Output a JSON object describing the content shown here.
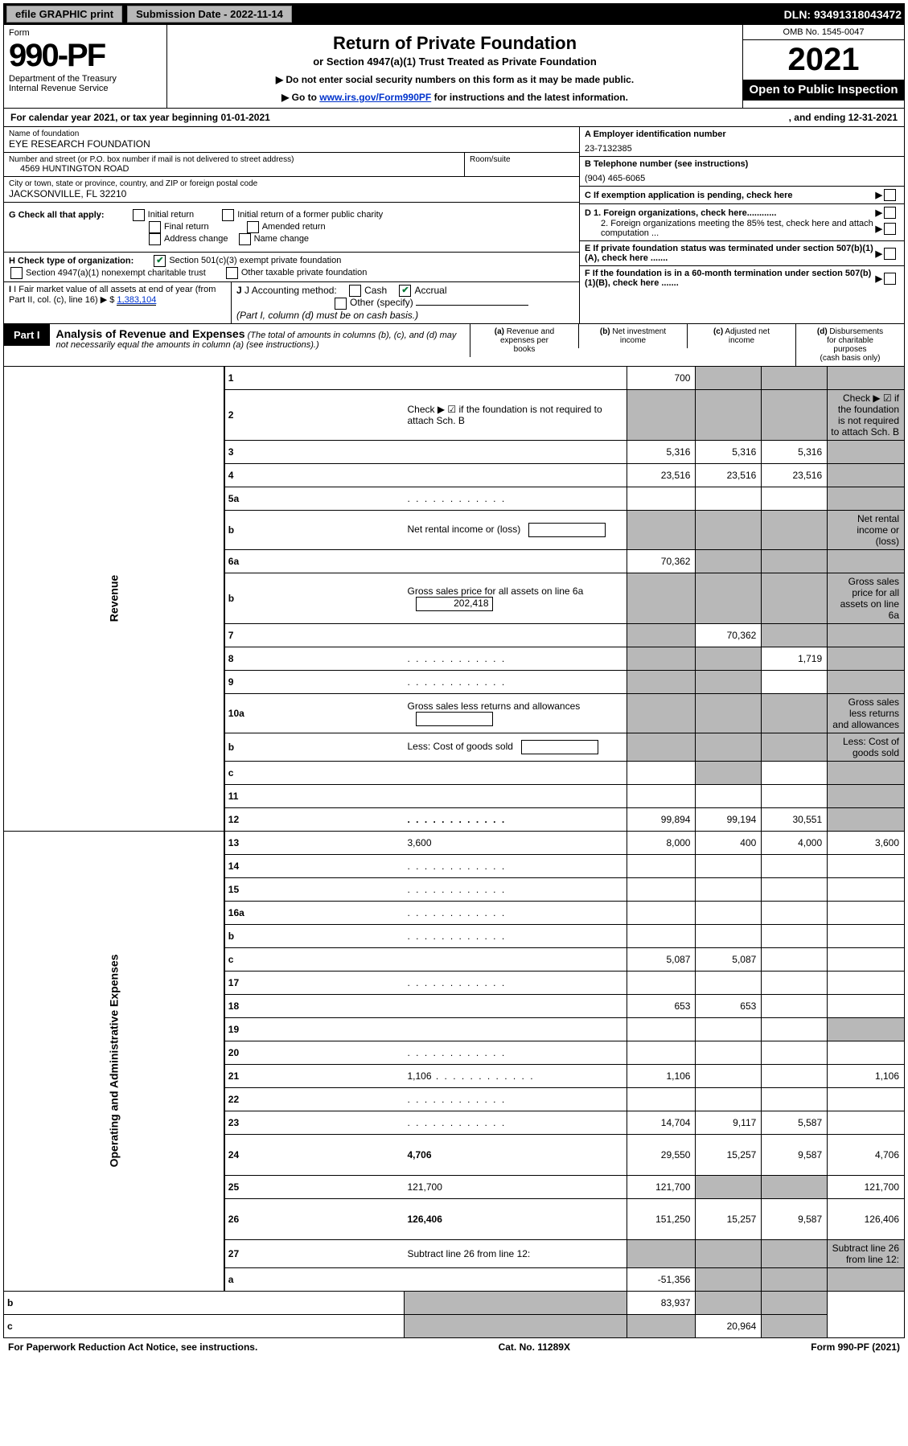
{
  "topbar": {
    "efile": "efile GRAPHIC print",
    "submission": "Submission Date - 2022-11-14",
    "dln": "DLN: 93491318043472"
  },
  "header": {
    "form_label": "Form",
    "form_number": "990-PF",
    "dept": "Department of the Treasury",
    "irs": "Internal Revenue Service",
    "title": "Return of Private Foundation",
    "subtitle": "or Section 4947(a)(1) Trust Treated as Private Foundation",
    "note1": "▶ Do not enter social security numbers on this form as it may be made public.",
    "note2_pre": "▶ Go to ",
    "note2_link": "www.irs.gov/Form990PF",
    "note2_post": " for instructions and the latest information.",
    "omb": "OMB No. 1545-0047",
    "year": "2021",
    "inspect": "Open to Public Inspection"
  },
  "calyear": {
    "left": "For calendar year 2021, or tax year beginning 01-01-2021",
    "right": ", and ending 12-31-2021"
  },
  "info": {
    "name_label": "Name of foundation",
    "name": "EYE RESEARCH FOUNDATION",
    "addr_label": "Number and street (or P.O. box number if mail is not delivered to street address)",
    "addr": "4569 HUNTINGTON ROAD",
    "room_label": "Room/suite",
    "city_label": "City or town, state or province, country, and ZIP or foreign postal code",
    "city": "JACKSONVILLE, FL  32210",
    "a_label": "A Employer identification number",
    "a_val": "23-7132385",
    "b_label": "B Telephone number (see instructions)",
    "b_val": "(904) 465-6065",
    "c_label": "C If exemption application is pending, check here",
    "d1": "D 1. Foreign organizations, check here............",
    "d2": "2. Foreign organizations meeting the 85% test, check here and attach computation ...",
    "e": "E  If private foundation status was terminated under section 507(b)(1)(A), check here .......",
    "f": "F  If the foundation is in a 60-month termination under section 507(b)(1)(B), check here .......",
    "g_label": "G Check all that apply:",
    "g_initial": "Initial return",
    "g_initial_fpc": "Initial return of a former public charity",
    "g_final": "Final return",
    "g_amended": "Amended return",
    "g_addr": "Address change",
    "g_name": "Name change",
    "h_label": "H Check type of organization:",
    "h_501c3": "Section 501(c)(3) exempt private foundation",
    "h_4947": "Section 4947(a)(1) nonexempt charitable trust",
    "h_other": "Other taxable private foundation",
    "i_label": "I Fair market value of all assets at end of year (from Part II, col. (c), line 16) ▶ $",
    "i_val": "1,383,104",
    "j_label": "J Accounting method:",
    "j_cash": "Cash",
    "j_accrual": "Accrual",
    "j_other": "Other (specify)",
    "j_note": "(Part I, column (d) must be on cash basis.)"
  },
  "part1": {
    "tag": "Part I",
    "title": "Analysis of Revenue and Expenses",
    "note": "(The total of amounts in columns (b), (c), and (d) may not necessarily equal the amounts in column (a) (see instructions).)",
    "col_a": "(a)  Revenue and expenses per books",
    "col_b": "(b)  Net investment income",
    "col_c": "(c)  Adjusted net income",
    "col_d": "(d)  Disbursements for charitable purposes (cash basis only)"
  },
  "side": {
    "revenue": "Revenue",
    "expenses": "Operating and Administrative Expenses"
  },
  "rows": [
    {
      "n": "1",
      "d": "",
      "a": "700",
      "b": "",
      "c": "",
      "grey": [
        "b",
        "c",
        "d"
      ]
    },
    {
      "n": "2",
      "d": "Check ▶ ☑ if the foundation is not required to attach Sch. B",
      "nobox": true,
      "grey": [
        "a",
        "b",
        "c",
        "d"
      ]
    },
    {
      "n": "3",
      "d": "",
      "a": "5,316",
      "b": "5,316",
      "c": "5,316",
      "grey": [
        "d"
      ]
    },
    {
      "n": "4",
      "d": "",
      "a": "23,516",
      "b": "23,516",
      "c": "23,516",
      "grey": [
        "d"
      ]
    },
    {
      "n": "5a",
      "d": "",
      "a": "",
      "b": "",
      "c": "",
      "grey": [
        "d"
      ],
      "dots": true
    },
    {
      "n": "b",
      "d": "Net rental income or (loss)",
      "inline": "",
      "grey": [
        "a",
        "b",
        "c",
        "d"
      ]
    },
    {
      "n": "6a",
      "d": "",
      "a": "70,362",
      "b": "",
      "c": "",
      "grey": [
        "b",
        "c",
        "d"
      ]
    },
    {
      "n": "b",
      "d": "Gross sales price for all assets on line 6a",
      "inline": "202,418",
      "grey": [
        "a",
        "b",
        "c",
        "d"
      ]
    },
    {
      "n": "7",
      "d": "",
      "a": "",
      "b": "70,362",
      "c": "",
      "grey": [
        "a",
        "c",
        "d"
      ]
    },
    {
      "n": "8",
      "d": "",
      "a": "",
      "b": "",
      "c": "1,719",
      "grey": [
        "a",
        "b",
        "d"
      ],
      "dots": true
    },
    {
      "n": "9",
      "d": "",
      "a": "",
      "b": "",
      "c": "",
      "grey": [
        "a",
        "b",
        "d"
      ],
      "dots": true
    },
    {
      "n": "10a",
      "d": "Gross sales less returns and allowances",
      "inline": "",
      "grey": [
        "a",
        "b",
        "c",
        "d"
      ]
    },
    {
      "n": "b",
      "d": "Less: Cost of goods sold",
      "inline": "",
      "grey": [
        "a",
        "b",
        "c",
        "d"
      ]
    },
    {
      "n": "c",
      "d": "",
      "a": "",
      "b": "",
      "c": "",
      "grey": [
        "b",
        "d"
      ]
    },
    {
      "n": "11",
      "d": "",
      "a": "",
      "b": "",
      "c": "",
      "grey": [
        "d"
      ]
    },
    {
      "n": "12",
      "d": "",
      "a": "99,894",
      "b": "99,194",
      "c": "30,551",
      "bold": true,
      "grey": [
        "d"
      ],
      "dots": true
    },
    {
      "n": "13",
      "d": "3,600",
      "a": "8,000",
      "b": "400",
      "c": "4,000"
    },
    {
      "n": "14",
      "d": "",
      "a": "",
      "b": "",
      "c": "",
      "dots": true
    },
    {
      "n": "15",
      "d": "",
      "a": "",
      "b": "",
      "c": "",
      "dots": true
    },
    {
      "n": "16a",
      "d": "",
      "a": "",
      "b": "",
      "c": "",
      "dots": true
    },
    {
      "n": "b",
      "d": "",
      "a": "",
      "b": "",
      "c": "",
      "dots": true
    },
    {
      "n": "c",
      "d": "",
      "a": "5,087",
      "b": "5,087",
      "c": ""
    },
    {
      "n": "17",
      "d": "",
      "a": "",
      "b": "",
      "c": "",
      "dots": true
    },
    {
      "n": "18",
      "d": "",
      "a": "653",
      "b": "653",
      "c": ""
    },
    {
      "n": "19",
      "d": "",
      "a": "",
      "b": "",
      "c": "",
      "grey": [
        "d"
      ]
    },
    {
      "n": "20",
      "d": "",
      "a": "",
      "b": "",
      "c": "",
      "dots": true
    },
    {
      "n": "21",
      "d": "1,106",
      "a": "1,106",
      "b": "",
      "c": "",
      "dots": true
    },
    {
      "n": "22",
      "d": "",
      "a": "",
      "b": "",
      "c": "",
      "dots": true
    },
    {
      "n": "23",
      "d": "",
      "a": "14,704",
      "b": "9,117",
      "c": "5,587",
      "dots": true
    },
    {
      "n": "24",
      "d": "4,706",
      "a": "29,550",
      "b": "15,257",
      "c": "9,587",
      "bold": true,
      "tall": true
    },
    {
      "n": "25",
      "d": "121,700",
      "a": "121,700",
      "b": "",
      "c": "",
      "grey": [
        "b",
        "c"
      ]
    },
    {
      "n": "26",
      "d": "126,406",
      "a": "151,250",
      "b": "15,257",
      "c": "9,587",
      "bold": true,
      "tall": true
    },
    {
      "n": "27",
      "d": "Subtract line 26 from line 12:",
      "grey": [
        "a",
        "b",
        "c",
        "d"
      ]
    },
    {
      "n": "a",
      "d": "",
      "a": "-51,356",
      "b": "",
      "c": "",
      "bold": true,
      "grey": [
        "b",
        "c",
        "d"
      ]
    },
    {
      "n": "b",
      "d": "",
      "a": "",
      "b": "83,937",
      "c": "",
      "bold": true,
      "grey": [
        "a",
        "c",
        "d"
      ]
    },
    {
      "n": "c",
      "d": "",
      "a": "",
      "b": "",
      "c": "20,964",
      "bold": true,
      "grey": [
        "a",
        "b",
        "d"
      ]
    }
  ],
  "footer": {
    "left": "For Paperwork Reduction Act Notice, see instructions.",
    "mid": "Cat. No. 11289X",
    "right": "Form 990-PF (2021)"
  }
}
